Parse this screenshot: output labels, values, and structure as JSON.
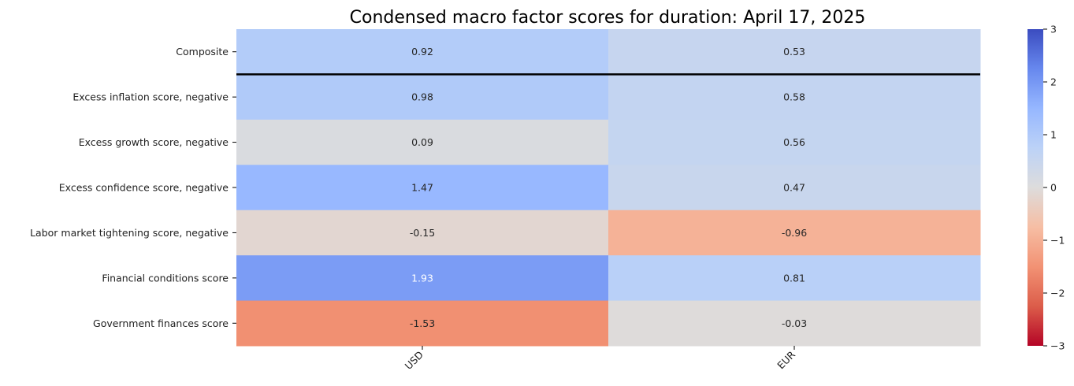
{
  "chart_data": {
    "type": "heatmap",
    "title": "Condensed macro factor scores for duration: April 17, 2025",
    "rows": [
      "Composite",
      "Excess inflation score, negative",
      "Excess growth score, negative",
      "Excess confidence score, negative",
      "Labor market tightening score, negative",
      "Financial conditions score",
      "Government finances score"
    ],
    "columns": [
      "USD",
      "EUR"
    ],
    "values": [
      [
        0.92,
        0.53
      ],
      [
        0.98,
        0.58
      ],
      [
        0.09,
        0.56
      ],
      [
        1.47,
        0.47
      ],
      [
        -0.15,
        -0.96
      ],
      [
        1.93,
        0.81
      ],
      [
        -1.53,
        -0.03
      ]
    ],
    "value_labels": [
      [
        "0.92",
        "0.53"
      ],
      [
        "0.98",
        "0.58"
      ],
      [
        "0.09",
        "0.56"
      ],
      [
        "1.47",
        "0.47"
      ],
      [
        "-0.15",
        "-0.96"
      ],
      [
        "1.93",
        "0.81"
      ],
      [
        "-1.53",
        "-0.03"
      ]
    ],
    "colorbar": {
      "colormap": "coolwarm",
      "vmin": -3,
      "vmax": 3,
      "ticks": [
        3,
        2,
        1,
        0,
        -1,
        -2,
        -3
      ],
      "tick_labels": [
        "3",
        "2",
        "1",
        "0",
        "−1",
        "−2",
        "−3"
      ]
    },
    "separator_after_row": "Composite"
  }
}
